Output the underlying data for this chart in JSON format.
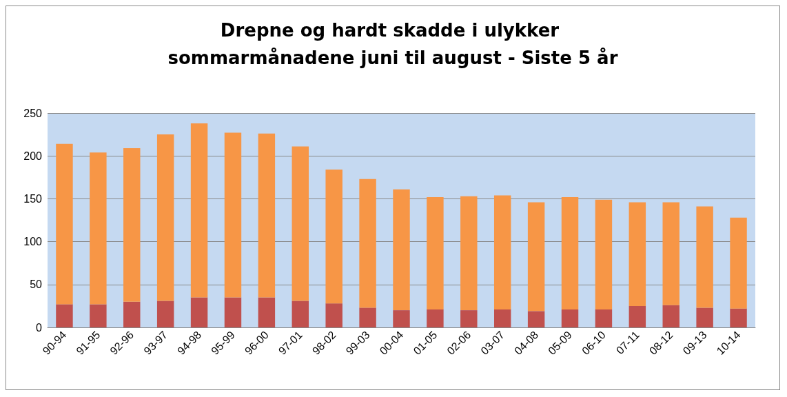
{
  "chart_data": {
    "type": "bar",
    "title": "Drepne og hardt skadde i ulykker sommarmånadene juni til august - Siste 5 år",
    "categories": [
      "90-94",
      "91-95",
      "92-96",
      "93-97",
      "94-98",
      "95-99",
      "96-00",
      "97-01",
      "98-02",
      "99-03",
      "00-04",
      "01-05",
      "02-06",
      "03-07",
      "04-08",
      "05-09",
      "06-10",
      "07-11",
      "08-12",
      "09-13",
      "10-14"
    ],
    "stacked": true,
    "series": [
      {
        "color": "#c0504d",
        "values": [
          27,
          27,
          30,
          31,
          35,
          35,
          35,
          31,
          28,
          23,
          20,
          21,
          20,
          21,
          19,
          21,
          21,
          25,
          26,
          23,
          22
        ]
      },
      {
        "color": "#f79646",
        "values": [
          187,
          177,
          179,
          194,
          203,
          192,
          191,
          180,
          156,
          150,
          141,
          131,
          133,
          133,
          127,
          131,
          128,
          121,
          120,
          118,
          106
        ]
      }
    ],
    "ylim": [
      0,
      250
    ],
    "yticks": [
      0,
      50,
      100,
      150,
      200,
      250
    ],
    "grid": "y"
  }
}
